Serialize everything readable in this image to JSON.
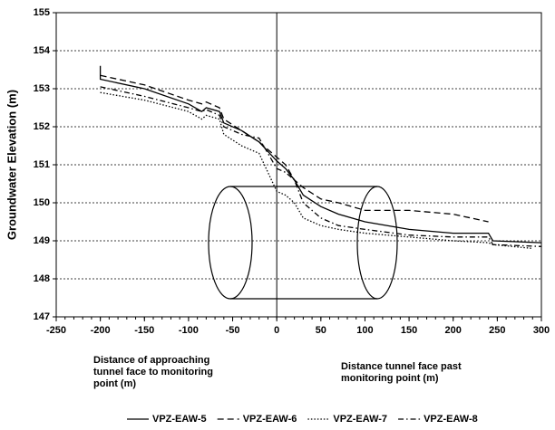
{
  "chart_data": {
    "type": "line",
    "y_label": "Groundwater Elevation (m)",
    "annotations": [
      "Distance of approaching tunnel face to monitoring point  (m)",
      "Distance tunnel face past monitoring point  (m)"
    ],
    "xlim": [
      -250,
      300
    ],
    "xticks": [
      -250,
      -200,
      -150,
      -100,
      -50,
      0,
      50,
      100,
      150,
      200,
      250,
      300
    ],
    "ylim": [
      147,
      155
    ],
    "yticks": [
      147,
      148,
      149,
      150,
      151,
      152,
      153,
      154,
      155
    ],
    "grid": true,
    "legend": "bottom",
    "series": [
      {
        "name": "VPZ-EAW-5",
        "color": "#000000",
        "dash": "none",
        "x": [
          -200,
          -200,
          -150,
          -100,
          -85,
          -80,
          -65,
          -60,
          -40,
          -20,
          0,
          10,
          20,
          30,
          50,
          70,
          100,
          150,
          200,
          240,
          245,
          300
        ],
        "values": [
          153.6,
          153.25,
          153.0,
          152.6,
          152.4,
          152.5,
          152.4,
          152.1,
          151.9,
          151.6,
          151.1,
          150.9,
          150.6,
          150.2,
          149.9,
          149.7,
          149.5,
          149.3,
          149.2,
          149.2,
          149.0,
          148.95
        ]
      },
      {
        "name": "VPZ-EAW-6",
        "color": "#000000",
        "dash": "7,4",
        "x": [
          -200,
          -150,
          -100,
          -85,
          -80,
          -65,
          -60,
          -40,
          -20,
          0,
          10,
          20,
          30,
          50,
          70,
          100,
          150,
          200,
          240
        ],
        "values": [
          153.35,
          153.1,
          152.7,
          152.6,
          152.65,
          152.5,
          152.2,
          151.9,
          151.6,
          151.2,
          151.0,
          150.6,
          150.4,
          150.1,
          150.0,
          149.8,
          149.8,
          149.7,
          149.5
        ]
      },
      {
        "name": "VPZ-EAW-7",
        "color": "#000000",
        "dash": "1.5,2",
        "x": [
          -200,
          -150,
          -100,
          -85,
          -80,
          -65,
          -60,
          -40,
          -20,
          0,
          10,
          20,
          30,
          50,
          70,
          100,
          150,
          200,
          240,
          245,
          290
        ],
        "values": [
          152.9,
          152.7,
          152.4,
          152.2,
          152.3,
          152.2,
          151.8,
          151.5,
          151.3,
          150.3,
          150.2,
          150.0,
          149.6,
          149.4,
          149.3,
          149.2,
          149.1,
          149.0,
          148.95,
          148.9,
          148.8
        ]
      },
      {
        "name": "VPZ-EAW-8",
        "color": "#000000",
        "dash": "6,3,1.5,3",
        "x": [
          -200,
          -150,
          -100,
          -85,
          -80,
          -65,
          -60,
          -40,
          -20,
          0,
          10,
          20,
          30,
          50,
          70,
          100,
          150,
          200,
          240,
          245,
          300
        ],
        "values": [
          153.05,
          152.8,
          152.5,
          152.4,
          152.45,
          152.3,
          152.0,
          151.8,
          151.7,
          150.9,
          150.8,
          150.6,
          150.0,
          149.6,
          149.4,
          149.3,
          149.15,
          149.1,
          149.1,
          148.9,
          148.85
        ]
      }
    ]
  }
}
